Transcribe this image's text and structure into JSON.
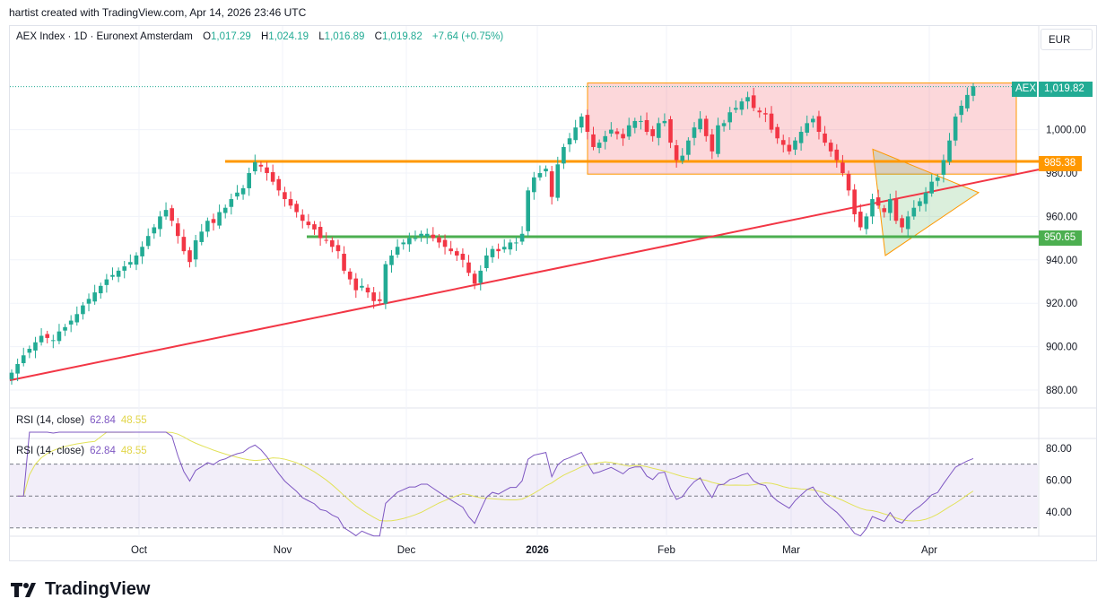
{
  "caption": "hartist created with TradingView.com, Apr 14, 2026 23:46 UTC",
  "legend": {
    "symbol": "AEX Index · 1D · Euronext Amsterdam",
    "o_label": "O",
    "o": "1,017.29",
    "h_label": "H",
    "h": "1,024.19",
    "l_label": "L",
    "l": "1,016.89",
    "c_label": "C",
    "c": "1,019.82",
    "change": "+7.64 (+0.75%)"
  },
  "currency": "EUR",
  "rsi": {
    "label": "RSI (14, close)",
    "value": "62.84",
    "ma": "48.55"
  },
  "tags": {
    "aex_name": "AEX",
    "aex_price": "1,019.82",
    "resistance": "985.38",
    "support": "950.65"
  },
  "brand": "TradingView",
  "colors": {
    "up": "#22ab94",
    "down": "#f23645",
    "orange": "#ff9800",
    "green_line": "#4caf50",
    "red_line": "#f23645",
    "rsi_line": "#7e57c2",
    "rsi_ma": "#e2e25a"
  },
  "chart_data": {
    "type": "candlestick",
    "title": "AEX Index · 1D · Euronext Amsterdam",
    "y_axis_ticks": [
      880,
      900,
      920,
      940,
      960,
      980,
      1000
    ],
    "y_axis_tick_labels": [
      "880.00",
      "900.00",
      "920.00",
      "940.00",
      "960.00",
      "980.00",
      "1,000.00"
    ],
    "x_axis_labels": [
      "Oct",
      "Nov",
      "Dec",
      "2026",
      "Feb",
      "Mar",
      "Apr"
    ],
    "last_close": 1019.82,
    "horizontal_levels": [
      {
        "value": 985.38,
        "color": "#ff9800"
      },
      {
        "value": 950.65,
        "color": "#4caf50"
      }
    ],
    "closes": [
      888,
      892,
      896,
      899,
      902,
      905,
      904,
      903,
      907,
      909,
      912,
      915,
      919,
      922,
      925,
      928,
      931,
      933,
      935,
      937,
      939,
      942,
      946,
      951,
      955,
      960,
      963,
      958,
      951,
      944,
      939,
      949,
      953,
      958,
      957,
      962,
      964,
      968,
      971,
      973,
      980,
      985,
      983,
      980,
      976,
      972,
      968,
      965,
      962,
      958,
      956,
      954,
      950,
      949,
      946,
      944,
      935,
      931,
      926,
      928,
      925,
      921,
      921,
      938,
      942,
      946,
      948,
      950,
      950,
      952,
      952,
      950,
      948,
      946,
      944,
      942,
      940,
      934,
      929,
      935,
      942,
      945,
      944,
      946,
      948,
      948,
      952,
      972,
      978,
      980,
      982,
      969,
      984,
      992,
      996,
      1001,
      1006,
      999,
      992,
      994,
      997,
      1000,
      998,
      996,
      1002,
      1004,
      1004,
      999,
      997,
      1003,
      1004,
      994,
      986,
      988,
      995,
      1001,
      1005,
      997,
      990,
      1002,
      1003,
      1008,
      1010,
      1013,
      1015,
      1010,
      1008,
      1007,
      1000,
      996,
      993,
      990,
      995,
      999,
      1003,
      1005,
      999,
      994,
      990,
      986,
      980,
      972,
      961,
      955,
      960,
      968,
      965,
      962,
      968,
      958,
      955,
      960,
      964,
      967,
      971,
      976,
      978,
      986,
      995,
      1006,
      1011,
      1016,
      1020
    ],
    "rsi_axis_ticks": [
      40,
      60,
      80
    ],
    "rsi_axis_tick_labels": [
      "40.00",
      "60.00",
      "80.00"
    ],
    "rsi_bands": [
      70,
      50,
      30
    ],
    "rsi_last": 62.84,
    "rsi_ma_last": 48.55
  }
}
